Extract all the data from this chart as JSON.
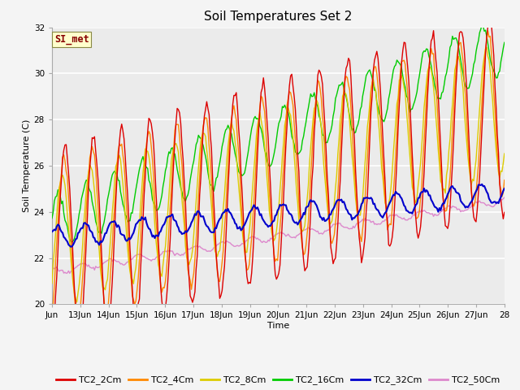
{
  "title": "Soil Temperatures Set 2",
  "xlabel": "Time",
  "ylabel": "Soil Temperature (C)",
  "ylim": [
    20,
    32
  ],
  "xlim_start": 0,
  "xlim_end": 16,
  "xtick_labels": [
    "Jun",
    "13Jun",
    "14Jun",
    "15Jun",
    "16Jun",
    "17Jun",
    "18Jun",
    "19Jun",
    "20Jun",
    "21Jun",
    "22Jun",
    "23Jun",
    "24Jun",
    "25Jun",
    "26Jun",
    "27Jun",
    "28"
  ],
  "ytick_labels": [
    20,
    22,
    24,
    26,
    28,
    30,
    32
  ],
  "series": {
    "TC2_2Cm": {
      "color": "#dd0000",
      "lw": 1.0
    },
    "TC2_4Cm": {
      "color": "#ff8800",
      "lw": 1.0
    },
    "TC2_8Cm": {
      "color": "#ddcc00",
      "lw": 1.0
    },
    "TC2_16Cm": {
      "color": "#00cc00",
      "lw": 1.0
    },
    "TC2_32Cm": {
      "color": "#0000cc",
      "lw": 1.5
    },
    "TC2_50Cm": {
      "color": "#dd88cc",
      "lw": 1.0
    }
  },
  "annotation_text": "SI_met",
  "annotation_color": "#880000",
  "annotation_bg": "#ffffcc",
  "bg_color": "#ebebeb",
  "grid_color": "#ffffff",
  "title_fontsize": 11,
  "axis_fontsize": 8,
  "tick_fontsize": 7.5
}
